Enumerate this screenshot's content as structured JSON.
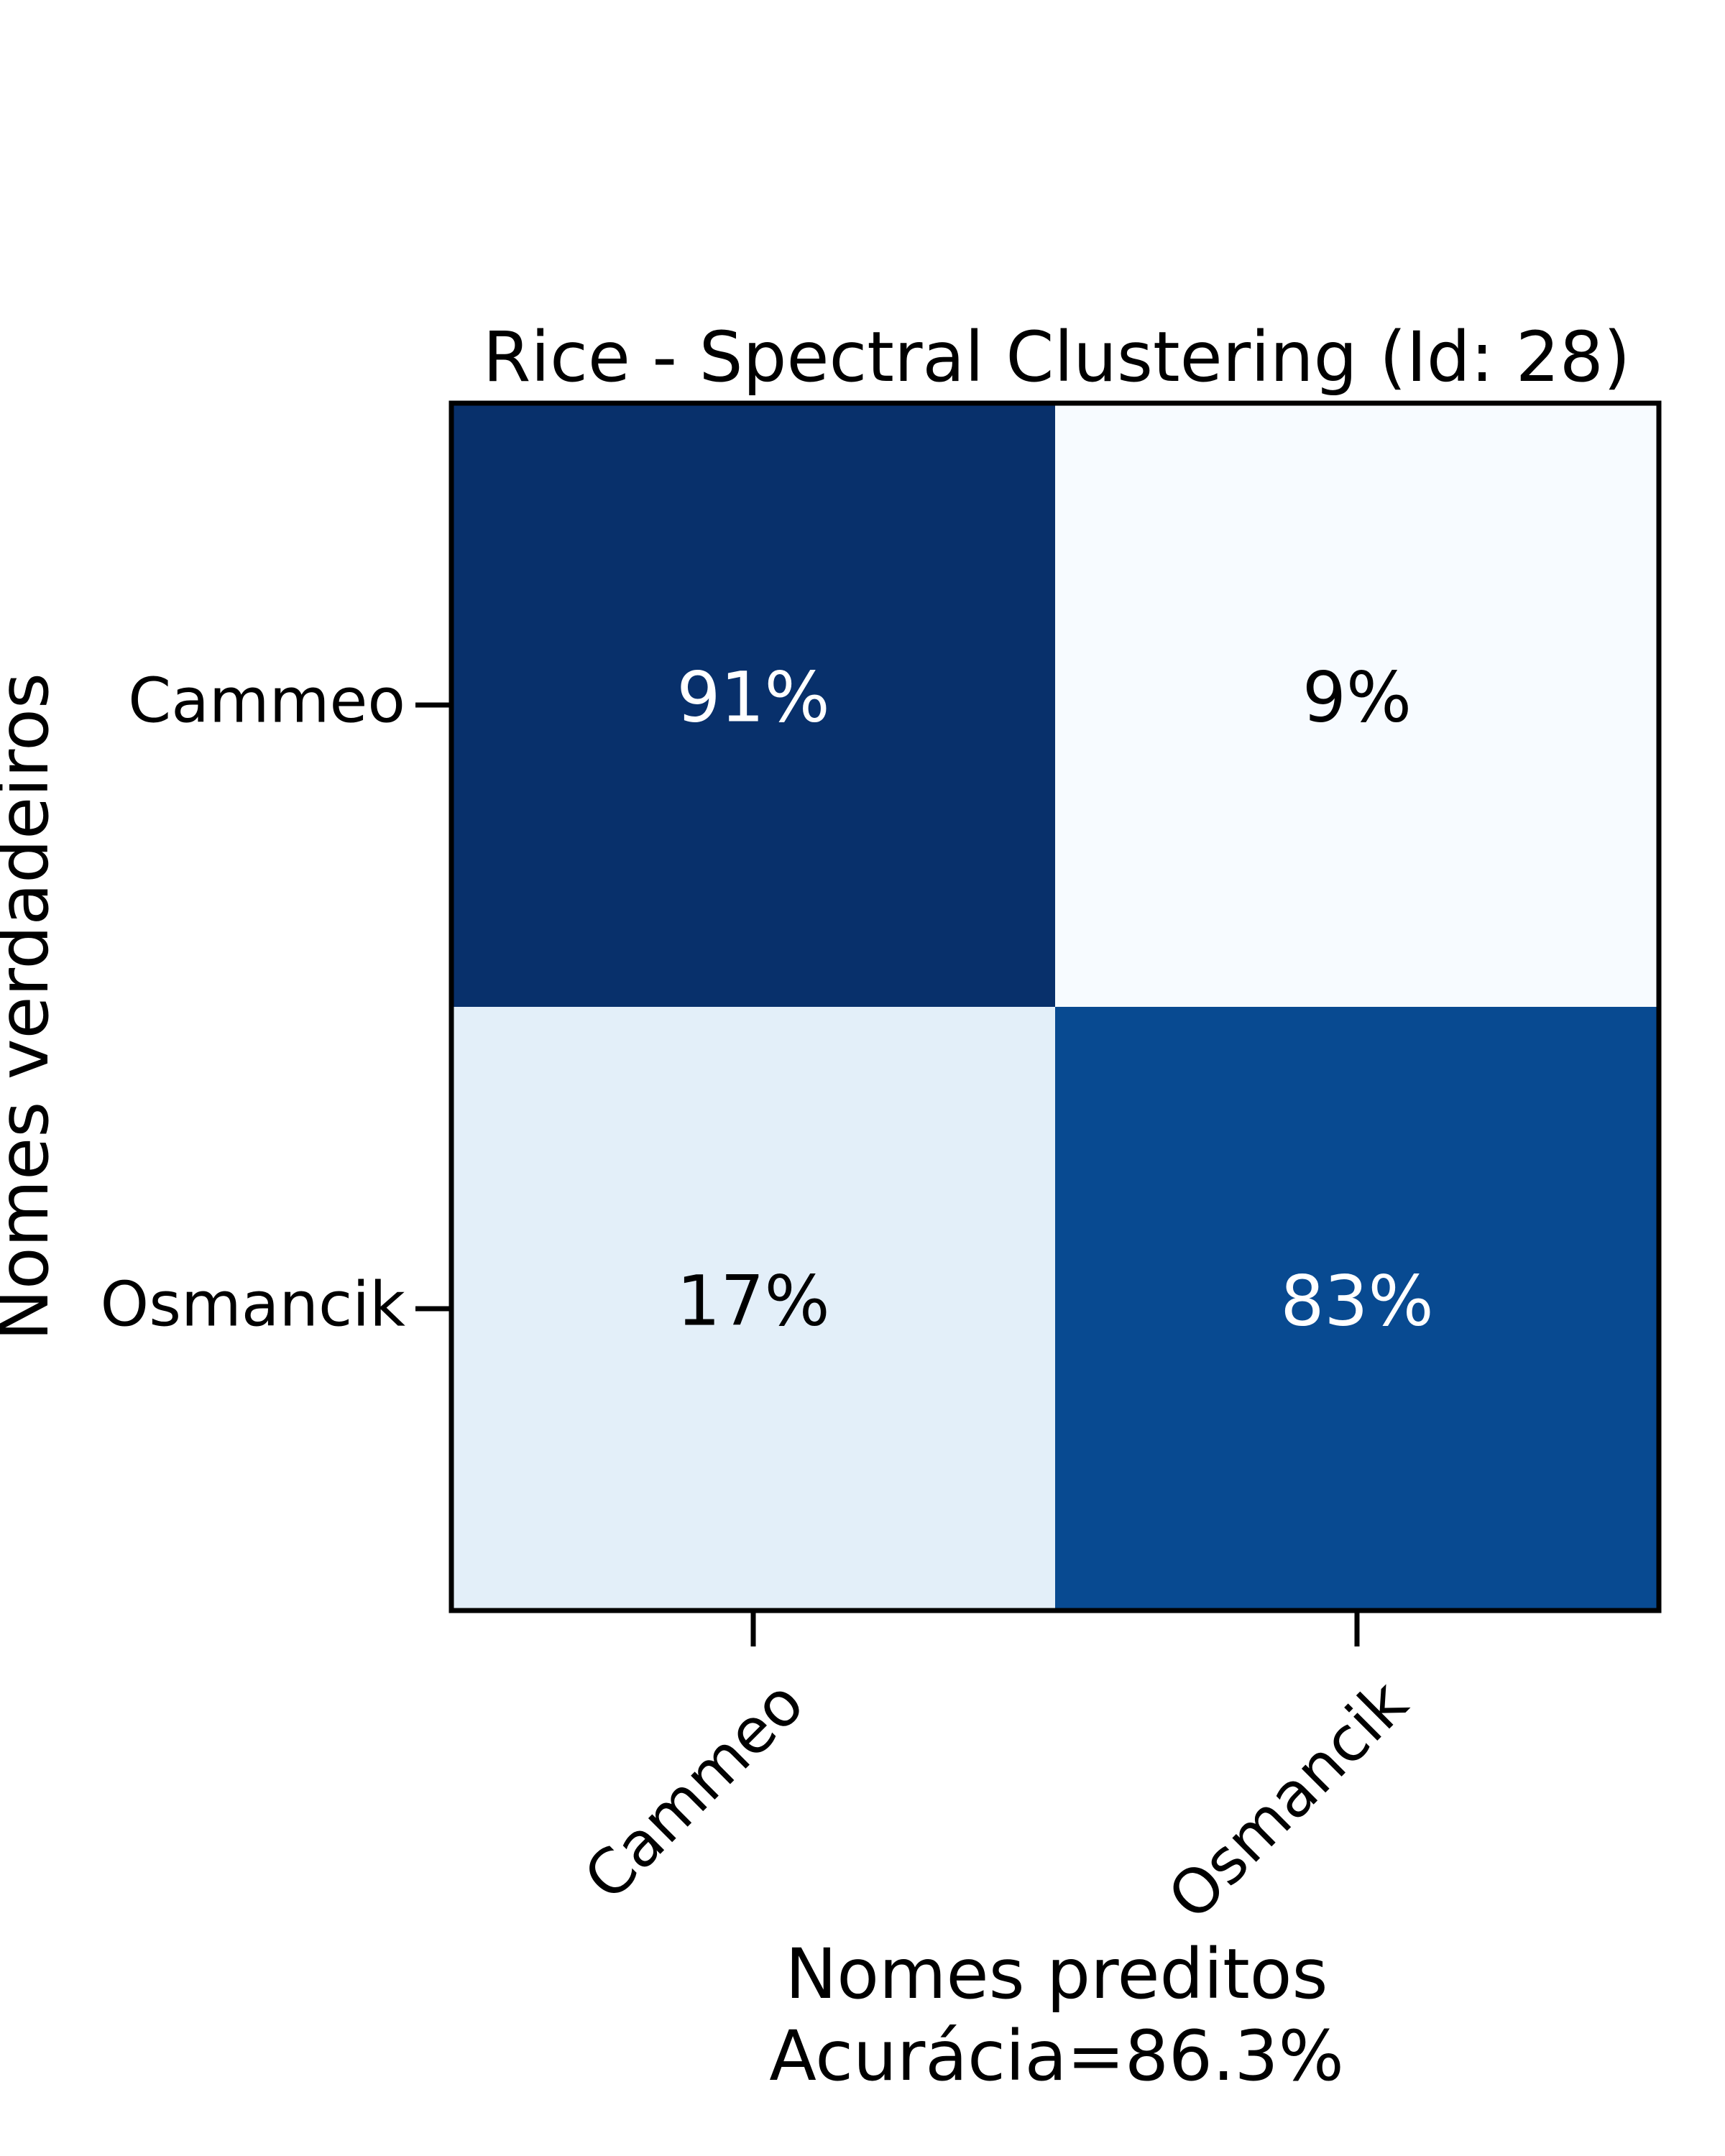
{
  "chart_data": {
    "type": "heatmap",
    "title": "Rice - Spectral Clustering (Id: 28)",
    "xlabel": "Nomes preditos",
    "xlabel_sub": "Acurácia=86.3%",
    "ylabel": "Nomes verdadeiros",
    "x_categories": [
      "Cammeo",
      "Osmancik"
    ],
    "y_categories": [
      "Cammeo",
      "Osmancik"
    ],
    "values": [
      [
        91,
        9
      ],
      [
        17,
        83
      ]
    ],
    "cell_labels": [
      [
        "91%",
        "9%"
      ],
      [
        "17%",
        "83%"
      ]
    ],
    "colormap": "Blues",
    "colors": {
      "low": "#f7fbff",
      "high": "#08306b",
      "text_dark": "#000000",
      "text_light": "#ffffff",
      "frame": "#000000"
    },
    "grid": false
  }
}
